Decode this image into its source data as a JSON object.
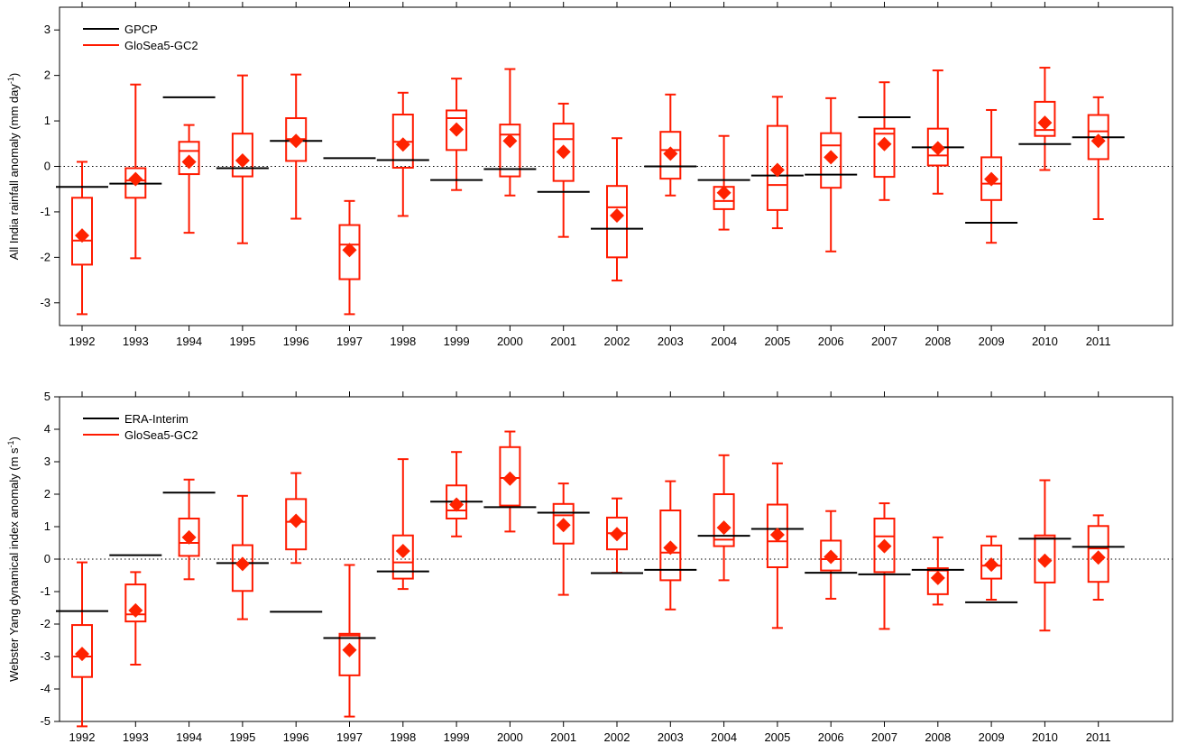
{
  "chart_data": [
    {
      "type": "box",
      "ylabel_main": "All India rainfall anomaly (mm day",
      "ylabel_sup": "-1",
      "ylabel_end": ")",
      "ylim": [
        -3.5,
        3.5
      ],
      "yticks": [
        -3,
        -2,
        -1,
        0,
        1,
        2,
        3
      ],
      "zero_line": "dotted",
      "legend_position": "top-left",
      "categories": [
        "1992",
        "1993",
        "1994",
        "1995",
        "1996",
        "1997",
        "1998",
        "1999",
        "2000",
        "2001",
        "2002",
        "2003",
        "2004",
        "2005",
        "2006",
        "2007",
        "2008",
        "2009",
        "2010",
        "2011"
      ],
      "observed": {
        "name": "GPCP",
        "color": "#000000",
        "values": [
          -0.45,
          -0.38,
          1.52,
          -0.04,
          0.56,
          0.18,
          0.14,
          -0.3,
          -0.06,
          -0.56,
          -1.37,
          0.0,
          -0.3,
          -0.2,
          -0.18,
          1.08,
          0.42,
          -1.24,
          0.49,
          0.64
        ]
      },
      "model": {
        "name": "GloSea5-GC2",
        "color": "#ff1a00",
        "marker_color": "#ff2200",
        "boxes": [
          {
            "min": -3.25,
            "q1": -2.16,
            "median": -1.63,
            "q3": -0.69,
            "max": 0.1,
            "mean": -1.52
          },
          {
            "min": -2.02,
            "q1": -0.69,
            "median": -0.31,
            "q3": -0.04,
            "max": 1.8,
            "mean": -0.28
          },
          {
            "min": -1.46,
            "q1": -0.17,
            "median": 0.34,
            "q3": 0.54,
            "max": 0.91,
            "mean": 0.1
          },
          {
            "min": -1.69,
            "q1": -0.22,
            "median": -0.04,
            "q3": 0.72,
            "max": 2.0,
            "mean": 0.13
          },
          {
            "min": -1.15,
            "q1": 0.12,
            "median": 0.6,
            "q3": 1.06,
            "max": 2.02,
            "mean": 0.56
          },
          {
            "min": -3.25,
            "q1": -2.48,
            "median": -1.72,
            "q3": -1.29,
            "max": -0.76,
            "mean": -1.84
          },
          {
            "min": -1.09,
            "q1": -0.03,
            "median": 0.54,
            "q3": 1.14,
            "max": 1.62,
            "mean": 0.48
          },
          {
            "min": -0.52,
            "q1": 0.36,
            "median": 1.06,
            "q3": 1.23,
            "max": 1.93,
            "mean": 0.81
          },
          {
            "min": -0.64,
            "q1": -0.22,
            "median": 0.7,
            "q3": 0.92,
            "max": 2.14,
            "mean": 0.56
          },
          {
            "min": -1.55,
            "q1": -0.32,
            "median": 0.6,
            "q3": 0.94,
            "max": 1.38,
            "mean": 0.32
          },
          {
            "min": -2.51,
            "q1": -2.0,
            "median": -0.9,
            "q3": -0.43,
            "max": 0.62,
            "mean": -1.08
          },
          {
            "min": -0.64,
            "q1": -0.27,
            "median": 0.36,
            "q3": 0.76,
            "max": 1.58,
            "mean": 0.28
          },
          {
            "min": -1.39,
            "q1": -0.94,
            "median": -0.76,
            "q3": -0.45,
            "max": 0.67,
            "mean": -0.58
          },
          {
            "min": -1.36,
            "q1": -0.96,
            "median": -0.41,
            "q3": 0.89,
            "max": 1.53,
            "mean": -0.08
          },
          {
            "min": -1.87,
            "q1": -0.47,
            "median": 0.46,
            "q3": 0.73,
            "max": 1.5,
            "mean": 0.2
          },
          {
            "min": -0.74,
            "q1": -0.23,
            "median": 0.72,
            "q3": 0.83,
            "max": 1.85,
            "mean": 0.49
          },
          {
            "min": -0.6,
            "q1": 0.02,
            "median": 0.24,
            "q3": 0.83,
            "max": 2.11,
            "mean": 0.4
          },
          {
            "min": -1.68,
            "q1": -0.74,
            "median": -0.38,
            "q3": 0.2,
            "max": 1.24,
            "mean": -0.28
          },
          {
            "min": -0.08,
            "q1": 0.67,
            "median": 0.8,
            "q3": 1.42,
            "max": 2.17,
            "mean": 0.96
          },
          {
            "min": -1.16,
            "q1": 0.16,
            "median": 0.77,
            "q3": 1.13,
            "max": 1.52,
            "mean": 0.56
          }
        ]
      }
    },
    {
      "type": "box",
      "ylabel_main": "Webster Yang dynamical index anomaly (m s",
      "ylabel_sup": "-1",
      "ylabel_end": ")",
      "ylim": [
        -5,
        5
      ],
      "yticks": [
        -5,
        -4,
        -3,
        -2,
        -1,
        0,
        1,
        2,
        3,
        4,
        5
      ],
      "zero_line": "dotted",
      "legend_position": "top-left",
      "categories": [
        "1992",
        "1993",
        "1994",
        "1995",
        "1996",
        "1997",
        "1998",
        "1999",
        "2000",
        "2001",
        "2002",
        "2003",
        "2004",
        "2005",
        "2006",
        "2007",
        "2008",
        "2009",
        "2010",
        "2011"
      ],
      "observed": {
        "name": "ERA-Interim",
        "color": "#000000",
        "values": [
          -1.6,
          0.12,
          2.05,
          -0.12,
          -1.62,
          -2.43,
          -0.38,
          1.77,
          1.6,
          1.43,
          -0.43,
          -0.33,
          0.72,
          0.93,
          -0.42,
          -0.47,
          -0.33,
          -1.33,
          0.63,
          0.38
        ]
      },
      "model": {
        "name": "GloSea5-GC2",
        "color": "#ff1a00",
        "marker_color": "#ff2200",
        "boxes": [
          {
            "min": -5.15,
            "q1": -3.63,
            "median": -3.0,
            "q3": -2.03,
            "max": -0.1,
            "mean": -2.92
          },
          {
            "min": -3.25,
            "q1": -1.92,
            "median": -1.7,
            "q3": -0.78,
            "max": -0.4,
            "mean": -1.58
          },
          {
            "min": -0.62,
            "q1": 0.1,
            "median": 0.5,
            "q3": 1.25,
            "max": 2.45,
            "mean": 0.67
          },
          {
            "min": -1.85,
            "q1": -0.98,
            "median": -0.12,
            "q3": 0.43,
            "max": 1.95,
            "mean": -0.15
          },
          {
            "min": -0.12,
            "q1": 0.3,
            "median": 1.15,
            "q3": 1.85,
            "max": 2.65,
            "mean": 1.18
          },
          {
            "min": -4.85,
            "q1": -3.58,
            "median": -2.35,
            "q3": -2.3,
            "max": -0.18,
            "mean": -2.8
          },
          {
            "min": -0.92,
            "q1": -0.6,
            "median": -0.1,
            "q3": 0.73,
            "max": 3.08,
            "mean": 0.25
          },
          {
            "min": 0.7,
            "q1": 1.25,
            "median": 1.5,
            "q3": 2.27,
            "max": 3.3,
            "mean": 1.68
          },
          {
            "min": 0.85,
            "q1": 1.65,
            "median": 2.5,
            "q3": 3.45,
            "max": 3.93,
            "mean": 2.48
          },
          {
            "min": -1.1,
            "q1": 0.48,
            "median": 1.35,
            "q3": 1.7,
            "max": 2.33,
            "mean": 1.05
          },
          {
            "min": -0.42,
            "q1": 0.3,
            "median": 0.8,
            "q3": 1.28,
            "max": 1.87,
            "mean": 0.77
          },
          {
            "min": -1.55,
            "q1": -0.65,
            "median": 0.2,
            "q3": 1.5,
            "max": 2.4,
            "mean": 0.35
          },
          {
            "min": -0.65,
            "q1": 0.4,
            "median": 0.6,
            "q3": 2.0,
            "max": 3.2,
            "mean": 0.97
          },
          {
            "min": -2.12,
            "q1": -0.25,
            "median": 0.55,
            "q3": 1.68,
            "max": 2.95,
            "mean": 0.75
          },
          {
            "min": -1.22,
            "q1": -0.35,
            "median": 0.0,
            "q3": 0.57,
            "max": 1.48,
            "mean": 0.07
          },
          {
            "min": -2.15,
            "q1": -0.4,
            "median": 0.7,
            "q3": 1.25,
            "max": 1.72,
            "mean": 0.4
          },
          {
            "min": -1.4,
            "q1": -1.08,
            "median": -0.35,
            "q3": -0.28,
            "max": 0.67,
            "mean": -0.58
          },
          {
            "min": -1.25,
            "q1": -0.6,
            "median": -0.2,
            "q3": 0.42,
            "max": 0.7,
            "mean": -0.17
          },
          {
            "min": -2.2,
            "q1": -0.72,
            "median": 0.65,
            "q3": 0.73,
            "max": 2.43,
            "mean": -0.05
          },
          {
            "min": -1.25,
            "q1": -0.7,
            "median": 0.33,
            "q3": 1.02,
            "max": 1.35,
            "mean": 0.05
          }
        ]
      }
    }
  ]
}
